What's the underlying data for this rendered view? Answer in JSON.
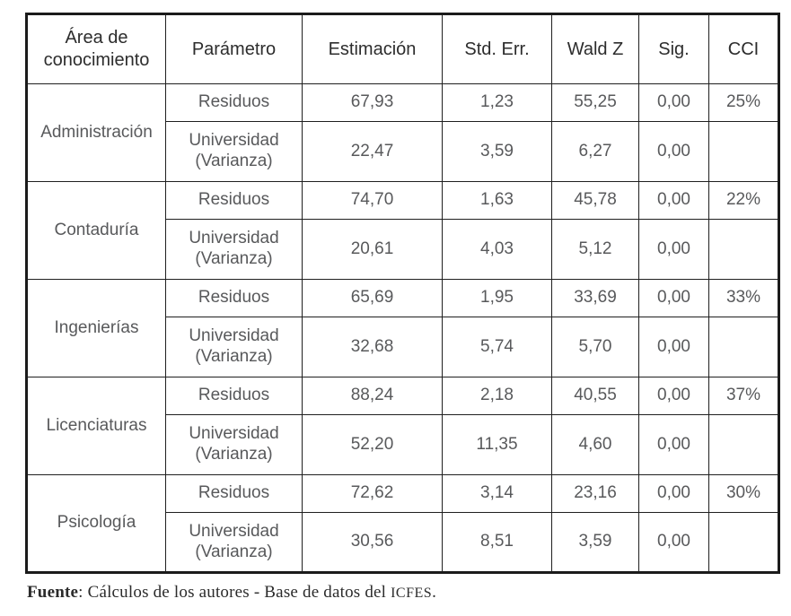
{
  "table": {
    "columns": [
      "Área de\nconocimiento",
      "Parámetro",
      "Estimación",
      "Std. Err.",
      "Wald Z",
      "Sig.",
      "CCI"
    ],
    "groups": [
      {
        "area": "Administración",
        "rows": [
          {
            "parametro": "Residuos",
            "estimacion": "67,93",
            "std_err": "1,23",
            "wald_z": "55,25",
            "sig": "0,00",
            "cci": "25%"
          },
          {
            "parametro": "Universidad\n(Varianza)",
            "estimacion": "22,47",
            "std_err": "3,59",
            "wald_z": "6,27",
            "sig": "0,00",
            "cci": ""
          }
        ]
      },
      {
        "area": "Contaduría",
        "rows": [
          {
            "parametro": "Residuos",
            "estimacion": "74,70",
            "std_err": "1,63",
            "wald_z": "45,78",
            "sig": "0,00",
            "cci": "22%"
          },
          {
            "parametro": "Universidad\n(Varianza)",
            "estimacion": "20,61",
            "std_err": "4,03",
            "wald_z": "5,12",
            "sig": "0,00",
            "cci": ""
          }
        ]
      },
      {
        "area": "Ingenierías",
        "rows": [
          {
            "parametro": "Residuos",
            "estimacion": "65,69",
            "std_err": "1,95",
            "wald_z": "33,69",
            "sig": "0,00",
            "cci": "33%"
          },
          {
            "parametro": "Universidad\n(Varianza)",
            "estimacion": "32,68",
            "std_err": "5,74",
            "wald_z": "5,70",
            "sig": "0,00",
            "cci": ""
          }
        ]
      },
      {
        "area": "Licenciaturas",
        "rows": [
          {
            "parametro": "Residuos",
            "estimacion": "88,24",
            "std_err": "2,18",
            "wald_z": "40,55",
            "sig": "0,00",
            "cci": "37%"
          },
          {
            "parametro": "Universidad\n(Varianza)",
            "estimacion": "52,20",
            "std_err": "11,35",
            "wald_z": "4,60",
            "sig": "0,00",
            "cci": ""
          }
        ]
      },
      {
        "area": "Psicología",
        "rows": [
          {
            "parametro": "Residuos",
            "estimacion": "72,62",
            "std_err": "3,14",
            "wald_z": "23,16",
            "sig": "0,00",
            "cci": "30%"
          },
          {
            "parametro": "Universidad\n(Varianza)",
            "estimacion": "30,56",
            "std_err": "8,51",
            "wald_z": "3,59",
            "sig": "0,00",
            "cci": ""
          }
        ]
      }
    ]
  },
  "footer": {
    "label": "Fuente",
    "text": ": Cálculos de los autores - Base de datos del ",
    "icfes": "ICFES",
    "period": "."
  }
}
